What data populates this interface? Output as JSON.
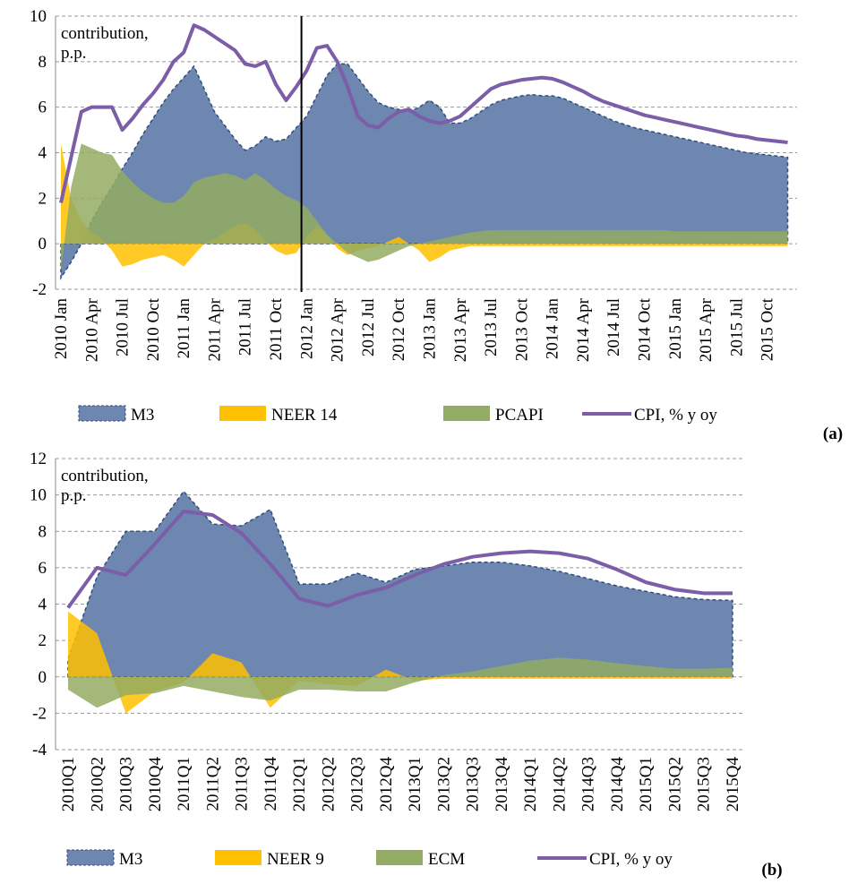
{
  "chart_data": [
    {
      "type": "area",
      "label": "(a)",
      "annotation": [
        "contribution,",
        "p.p."
      ],
      "categories": [
        "2010 Jan",
        null,
        null,
        "2010 Apr",
        null,
        null,
        "2010 Jul",
        null,
        null,
        "2010 Oct",
        null,
        null,
        "2011 Jan",
        null,
        null,
        "2011 Apr",
        null,
        null,
        "2011 Jul",
        null,
        null,
        "2011 Oct",
        null,
        null,
        "2012 Jan",
        null,
        null,
        "2012 Apr",
        null,
        null,
        "2012 Jul",
        null,
        null,
        "2012 Oct",
        null,
        null,
        "2013 Jan",
        null,
        null,
        "2013 Apr",
        null,
        null,
        "2013 Jul",
        null,
        null,
        "2013 Oct",
        null,
        null,
        "2014 Jan",
        null,
        null,
        "2014 Apr",
        null,
        null,
        "2014 Jul",
        null,
        null,
        "2014 Oct",
        null,
        null,
        "2015 Jan",
        null,
        null,
        "2015 Apr",
        null,
        null,
        "2015 Jul",
        null,
        null,
        "2015 Oct",
        null,
        null
      ],
      "ylim": [
        -2,
        10
      ],
      "yticks": [
        -2,
        0,
        2,
        4,
        6,
        8,
        10
      ],
      "grid": true,
      "series": [
        {
          "name": "M3",
          "type": "area",
          "color": "#6d87b0",
          "values": [
            -1.5,
            -0.8,
            0.0,
            1.0,
            1.8,
            2.5,
            3.3,
            4.0,
            4.8,
            5.5,
            6.2,
            6.8,
            7.3,
            7.8,
            6.8,
            5.8,
            5.2,
            4.6,
            4.1,
            4.3,
            4.7,
            4.5,
            4.6,
            5.1,
            5.6,
            6.5,
            7.4,
            7.9,
            7.9,
            7.3,
            6.7,
            6.2,
            6.0,
            5.9,
            5.8,
            6.0,
            6.3,
            6.0,
            5.3,
            5.3,
            5.5,
            5.8,
            6.1,
            6.3,
            6.4,
            6.5,
            6.55,
            6.5,
            6.5,
            6.4,
            6.2,
            6.0,
            5.8,
            5.6,
            5.4,
            5.25,
            5.1,
            5.0,
            4.9,
            4.8,
            4.7,
            4.6,
            4.5,
            4.4,
            4.3,
            4.2,
            4.1,
            4.0,
            3.95,
            3.9,
            3.85,
            3.8
          ]
        },
        {
          "name": "NEER 14",
          "type": "area",
          "color": "#ffc000",
          "values": [
            4.4,
            2.0,
            1.0,
            0.5,
            0.2,
            -0.3,
            -1.0,
            -0.9,
            -0.7,
            -0.6,
            -0.5,
            -0.7,
            -1.0,
            -0.5,
            0.0,
            0.2,
            0.5,
            0.8,
            0.9,
            0.6,
            0.1,
            -0.3,
            -0.5,
            -0.4,
            0.3,
            0.8,
            0.4,
            -0.2,
            -0.5,
            -0.3,
            -0.2,
            -0.1,
            0.1,
            0.3,
            0.0,
            -0.3,
            -0.8,
            -0.6,
            -0.3,
            -0.2,
            -0.1,
            -0.1,
            -0.1,
            -0.1,
            -0.1,
            -0.1,
            -0.1,
            -0.1,
            -0.1,
            -0.1,
            -0.1,
            -0.1,
            -0.1,
            -0.1,
            -0.1,
            -0.1,
            -0.1,
            -0.1,
            -0.1,
            -0.1,
            -0.1,
            -0.1,
            -0.1,
            -0.1,
            -0.1,
            -0.1,
            -0.1,
            -0.1,
            -0.1,
            -0.1,
            -0.1,
            -0.1
          ]
        },
        {
          "name": "PCAPI",
          "type": "area",
          "color": "#93ab62",
          "values": [
            -1.2,
            2.5,
            4.4,
            4.2,
            4.0,
            3.9,
            3.2,
            2.7,
            2.3,
            2.0,
            1.8,
            1.8,
            2.1,
            2.7,
            2.9,
            3.0,
            3.1,
            3.0,
            2.8,
            3.1,
            2.8,
            2.4,
            2.1,
            1.9,
            1.6,
            1.0,
            0.4,
            0.0,
            -0.4,
            -0.6,
            -0.8,
            -0.7,
            -0.5,
            -0.3,
            -0.1,
            0.0,
            0.1,
            0.2,
            0.3,
            0.4,
            0.5,
            0.55,
            0.6,
            0.6,
            0.6,
            0.6,
            0.6,
            0.6,
            0.6,
            0.6,
            0.6,
            0.6,
            0.6,
            0.6,
            0.6,
            0.6,
            0.6,
            0.6,
            0.6,
            0.6,
            0.55,
            0.55,
            0.55,
            0.55,
            0.55,
            0.55,
            0.55,
            0.55,
            0.55,
            0.55,
            0.55,
            0.55
          ]
        },
        {
          "name": "CPI, % y oy",
          "type": "line",
          "color": "#7b5ea7",
          "values": [
            1.8,
            3.8,
            5.8,
            6.0,
            6.0,
            6.0,
            5.0,
            5.5,
            6.1,
            6.6,
            7.2,
            8.0,
            8.4,
            9.6,
            9.4,
            9.1,
            8.8,
            8.5,
            7.9,
            7.8,
            8.0,
            7.0,
            6.3,
            6.9,
            7.6,
            8.6,
            8.7,
            8.0,
            6.9,
            5.6,
            5.2,
            5.1,
            5.5,
            5.8,
            5.9,
            5.6,
            5.4,
            5.3,
            5.4,
            5.6,
            6.0,
            6.4,
            6.8,
            7.0,
            7.1,
            7.2,
            7.25,
            7.3,
            7.25,
            7.1,
            6.9,
            6.7,
            6.45,
            6.25,
            6.1,
            5.95,
            5.8,
            5.65,
            5.55,
            5.45,
            5.35,
            5.25,
            5.15,
            5.05,
            4.95,
            4.85,
            4.75,
            4.7,
            4.6,
            4.55,
            4.5,
            4.45
          ]
        }
      ]
    },
    {
      "type": "area",
      "label": "(b)",
      "annotation": [
        "contribution,",
        "p.p."
      ],
      "categories": [
        "2010Q1",
        "2010Q2",
        "2010Q3",
        "2010Q4",
        "2011Q1",
        "2011Q2",
        "2011Q3",
        "2011Q4",
        "2012Q1",
        "2012Q2",
        "2012Q3",
        "2012Q4",
        "2013Q1",
        "2013Q2",
        "2013Q3",
        "2013Q4",
        "2014Q1",
        "2014Q2",
        "2014Q3",
        "2014Q4",
        "2015Q1",
        "2015Q2",
        "2015Q3",
        "2015Q4"
      ],
      "ylim": [
        -4,
        12
      ],
      "yticks": [
        -4,
        -2,
        0,
        2,
        4,
        6,
        8,
        10,
        12
      ],
      "grid": true,
      "series": [
        {
          "name": "M3",
          "type": "area",
          "color": "#6d87b0",
          "values": [
            1.0,
            5.5,
            8.0,
            8.0,
            10.2,
            8.4,
            8.3,
            9.2,
            5.1,
            5.1,
            5.7,
            5.2,
            5.9,
            6.1,
            6.3,
            6.3,
            6.1,
            5.8,
            5.4,
            5.0,
            4.7,
            4.4,
            4.25,
            4.2
          ]
        },
        {
          "name": "NEER 9",
          "type": "area",
          "color": "#ffc000",
          "values": [
            3.6,
            2.4,
            -2.0,
            -0.8,
            -0.3,
            1.3,
            0.8,
            -1.7,
            -0.2,
            -0.4,
            -0.5,
            0.4,
            -0.2,
            -0.1,
            -0.1,
            -0.1,
            -0.1,
            -0.1,
            -0.1,
            -0.1,
            -0.1,
            -0.1,
            -0.1,
            -0.1
          ]
        },
        {
          "name": "ECM",
          "type": "area",
          "color": "#93ab62",
          "values": [
            -0.7,
            -1.7,
            -1.0,
            -0.9,
            -0.5,
            -0.8,
            -1.1,
            -1.3,
            -0.7,
            -0.7,
            -0.8,
            -0.8,
            -0.3,
            0.1,
            0.3,
            0.6,
            0.9,
            1.05,
            0.95,
            0.75,
            0.6,
            0.45,
            0.45,
            0.5
          ]
        },
        {
          "name": "CPI, % y oy",
          "type": "line",
          "color": "#7b5ea7",
          "values": [
            3.8,
            6.0,
            5.6,
            7.3,
            9.1,
            8.9,
            7.9,
            6.2,
            4.3,
            3.9,
            4.5,
            4.9,
            5.6,
            6.2,
            6.6,
            6.8,
            6.9,
            6.8,
            6.5,
            5.9,
            5.2,
            4.8,
            4.6,
            4.6
          ]
        }
      ]
    }
  ]
}
